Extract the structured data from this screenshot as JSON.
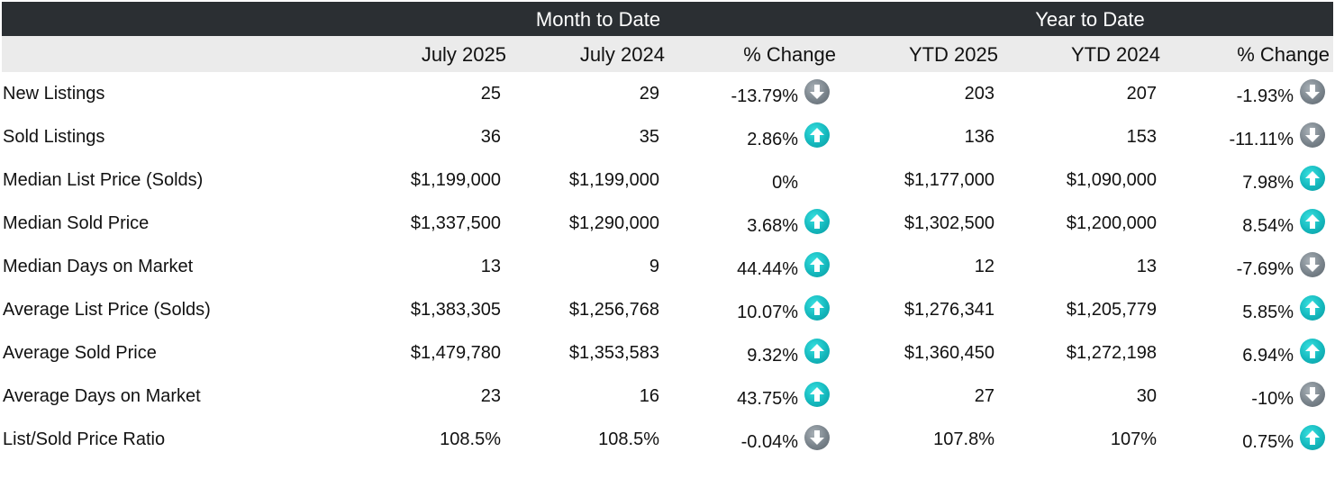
{
  "header": {
    "month_to_date": "Month to Date",
    "year_to_date": "Year to Date"
  },
  "columns": [
    "July 2025",
    "July 2024",
    "% Change",
    "YTD 2025",
    "YTD 2024",
    "% Change"
  ],
  "colors": {
    "banner_bg": "#2b2f33",
    "subheader_bg": "#ebebeb",
    "up_arrow": "#14b8bd",
    "down_arrow": "#79838b"
  },
  "rows": [
    {
      "label": "New Listings",
      "m25": "25",
      "m24": "29",
      "mchg": "-13.79%",
      "mdir": "down",
      "y25": "203",
      "y24": "207",
      "ychg": "-1.93%",
      "ydir": "down"
    },
    {
      "label": "Sold Listings",
      "m25": "36",
      "m24": "35",
      "mchg": "2.86%",
      "mdir": "up",
      "y25": "136",
      "y24": "153",
      "ychg": "-11.11%",
      "ydir": "down"
    },
    {
      "label": "Median List Price (Solds)",
      "m25": "$1,199,000",
      "m24": "$1,199,000",
      "mchg": "0%",
      "mdir": "none",
      "y25": "$1,177,000",
      "y24": "$1,090,000",
      "ychg": "7.98%",
      "ydir": "up"
    },
    {
      "label": "Median Sold Price",
      "m25": "$1,337,500",
      "m24": "$1,290,000",
      "mchg": "3.68%",
      "mdir": "up",
      "y25": "$1,302,500",
      "y24": "$1,200,000",
      "ychg": "8.54%",
      "ydir": "up"
    },
    {
      "label": "Median Days on Market",
      "m25": "13",
      "m24": "9",
      "mchg": "44.44%",
      "mdir": "up",
      "y25": "12",
      "y24": "13",
      "ychg": "-7.69%",
      "ydir": "down"
    },
    {
      "label": "Average List Price (Solds)",
      "m25": "$1,383,305",
      "m24": "$1,256,768",
      "mchg": "10.07%",
      "mdir": "up",
      "y25": "$1,276,341",
      "y24": "$1,205,779",
      "ychg": "5.85%",
      "ydir": "up"
    },
    {
      "label": "Average Sold Price",
      "m25": "$1,479,780",
      "m24": "$1,353,583",
      "mchg": "9.32%",
      "mdir": "up",
      "y25": "$1,360,450",
      "y24": "$1,272,198",
      "ychg": "6.94%",
      "ydir": "up"
    },
    {
      "label": "Average Days on Market",
      "m25": "23",
      "m24": "16",
      "mchg": "43.75%",
      "mdir": "up",
      "y25": "27",
      "y24": "30",
      "ychg": "-10%",
      "ydir": "down"
    },
    {
      "label": "List/Sold Price Ratio",
      "m25": "108.5%",
      "m24": "108.5%",
      "mchg": "-0.04%",
      "mdir": "down",
      "y25": "107.8%",
      "y24": "107%",
      "ychg": "0.75%",
      "ydir": "up"
    }
  ]
}
